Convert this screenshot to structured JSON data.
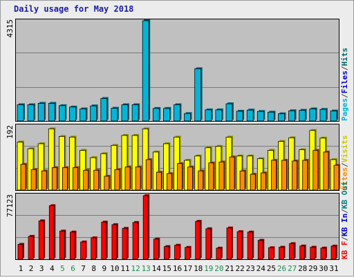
{
  "title": "Daily usage for May 2018",
  "chart_data": {
    "type": "bar",
    "title": "Daily usage for May 2018",
    "categories": [
      "1",
      "2",
      "3",
      "4",
      "5",
      "6",
      "7",
      "8",
      "9",
      "10",
      "11",
      "12",
      "13",
      "14",
      "15",
      "16",
      "17",
      "18",
      "19",
      "20",
      "21",
      "22",
      "23",
      "24",
      "25",
      "26",
      "27",
      "28",
      "29",
      "30",
      "31"
    ],
    "weekend_days": [
      "5",
      "6",
      "12",
      "13",
      "19",
      "20",
      "26",
      "27"
    ],
    "panels": [
      {
        "name": "top",
        "ymax_label": "4315",
        "ymax": 4315,
        "series": [
          {
            "name": "Pages",
            "color": "#00b5d8",
            "values": [
              700,
              700,
              760,
              760,
              660,
              600,
              520,
              650,
              970,
              550,
              700,
              700,
              4315,
              540,
              540,
              700,
              320,
              2250,
              480,
              480,
              740,
              420,
              470,
              410,
              380,
              310,
              440,
              460,
              520,
              500,
              430
            ]
          },
          {
            "name": "Files",
            "color": "#0000cc",
            "values": []
          },
          {
            "name": "Hits",
            "color": "#006666",
            "values": []
          }
        ]
      },
      {
        "name": "middle",
        "ymax_label": "192",
        "series": [
          {
            "name": "Visits",
            "color": "#ffff00",
            "values": [
              145,
              125,
              140,
              185,
              162,
              160,
              120,
              98,
              110,
              135,
              165,
              165,
              185,
              115,
              140,
              160,
              90,
              103,
              128,
              132,
              160,
              103,
              103,
              95,
              120,
              147,
              158,
              122,
              180,
              157,
              92
            ]
          },
          {
            "name": "Sites",
            "color": "#ff8c00",
            "values": [
              78,
              62,
              58,
              68,
              68,
              68,
              60,
              60,
              42,
              62,
              70,
              70,
              92,
              54,
              50,
              80,
              70,
              58,
              82,
              85,
              100,
              58,
              48,
              52,
              90,
              90,
              88,
              90,
              120,
              115,
              75
            ]
          }
        ]
      },
      {
        "name": "bottom",
        "ymax_label": "77123",
        "ymax": 77123,
        "series": [
          {
            "name": "KB Out",
            "color": "#008080",
            "values": []
          },
          {
            "name": "KB In",
            "color": "#0000cc",
            "values": []
          },
          {
            "name": "KB F",
            "color": "#ff0000",
            "values": [
              18100,
              27800,
              46600,
              65000,
              34200,
              33000,
              21000,
              26000,
              45100,
              42000,
              37500,
              44600,
              77123,
              24500,
              15400,
              17000,
              14400,
              46000,
              37000,
              13500,
              38000,
              33500,
              33000,
              23000,
              14000,
              14600,
              19000,
              16100,
              14600,
              13600,
              16000
            ]
          }
        ]
      }
    ]
  }
}
